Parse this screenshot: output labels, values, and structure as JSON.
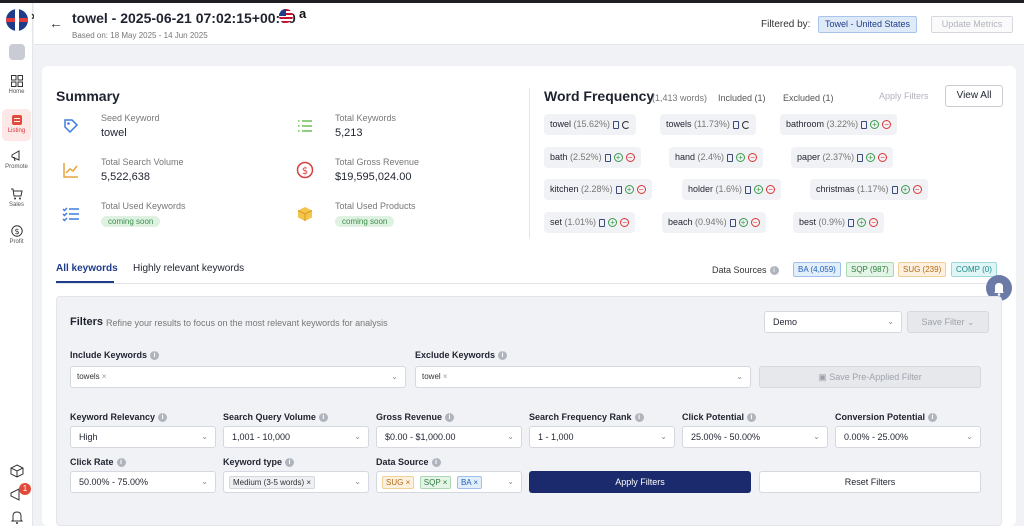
{
  "header": {
    "title": "towel - 2025-06-21 07:02:15+00:00",
    "subtitle": "Based on: 18 May 2025 - 14 Jun 2025",
    "marketplace": "a",
    "filtered_by_label": "Filtered by:",
    "filter_chip": "Towel - United States",
    "update_button": "Update Metrics"
  },
  "sidebar": {
    "expand": "»",
    "items": [
      {
        "label": "Home"
      },
      {
        "label": "Listing"
      },
      {
        "label": "Promote"
      },
      {
        "label": "Sales"
      },
      {
        "label": "Profit"
      }
    ],
    "notification_count": "1"
  },
  "summary": {
    "title": "Summary",
    "stats": [
      {
        "label": "Seed Keyword",
        "value": "towel",
        "icon": "tag-icon"
      },
      {
        "label": "Total Keywords",
        "value": "5,213",
        "icon": "list-icon"
      },
      {
        "label": "Total Search Volume",
        "value": "5,522,638",
        "icon": "chart-icon"
      },
      {
        "label": "Total Gross Revenue",
        "value": "$19,595,024.00",
        "icon": "dollar-icon"
      },
      {
        "label": "Total Used Keywords",
        "value": "coming soon",
        "icon": "checklist-icon"
      },
      {
        "label": "Total Used Products",
        "value": "coming soon",
        "icon": "box-icon"
      }
    ]
  },
  "word_frequency": {
    "title": "Word Frequency",
    "count": "(1,413 words)",
    "included": "Included (1)",
    "excluded": "Excluded (1)",
    "apply_filters": "Apply Filters",
    "view_all": "View All",
    "chips": [
      {
        "word": "towel",
        "pct": "(15.62%)"
      },
      {
        "word": "towels",
        "pct": "(11.73%)"
      },
      {
        "word": "bathroom",
        "pct": "(3.22%)"
      },
      {
        "word": "bath",
        "pct": "(2.52%)"
      },
      {
        "word": "hand",
        "pct": "(2.4%)"
      },
      {
        "word": "paper",
        "pct": "(2.37%)"
      },
      {
        "word": "kitchen",
        "pct": "(2.28%)"
      },
      {
        "word": "holder",
        "pct": "(1.6%)"
      },
      {
        "word": "christmas",
        "pct": "(1.17%)"
      },
      {
        "word": "set",
        "pct": "(1.01%)"
      },
      {
        "word": "beach",
        "pct": "(0.94%)"
      },
      {
        "word": "best",
        "pct": "(0.9%)"
      }
    ]
  },
  "tabs": [
    "All keywords",
    "Highly relevant keywords"
  ],
  "data_sources": {
    "label": "Data Sources",
    "badges": [
      {
        "text": "BA (4,059)",
        "color": "#1f5fb8",
        "bg": "#e3eefb",
        "border": "#9fc0ea"
      },
      {
        "text": "SQP (987)",
        "color": "#2e7d3e",
        "bg": "#e4f4e7",
        "border": "#a9d8b2"
      },
      {
        "text": "SUG (239)",
        "color": "#b36b12",
        "bg": "#fdf0de",
        "border": "#f0cf9a"
      },
      {
        "text": "COMP (0)",
        "color": "#1a8a8a",
        "bg": "#e0f5f5",
        "border": "#9ed9d9"
      }
    ]
  },
  "filters": {
    "title": "Filters",
    "description": "Refine your results to focus on the most relevant keywords for analysis",
    "preset": "Demo",
    "save_filter": "Save Filter",
    "include_label": "Include Keywords",
    "include_tag": "towels",
    "exclude_label": "Exclude Keywords",
    "exclude_tag": "towel",
    "save_preapplied": "Save Pre-Applied Filter",
    "fields": [
      {
        "label": "Keyword Relevancy",
        "value": "High"
      },
      {
        "label": "Search Query Volume",
        "value": "1,001 - 10,000"
      },
      {
        "label": "Gross Revenue",
        "value": "$0.00 - $1,000.00"
      },
      {
        "label": "Search Frequency Rank",
        "value": "1 - 1,000"
      },
      {
        "label": "Click Potential",
        "value": "25.00% - 50.00%"
      },
      {
        "label": "Conversion Potential",
        "value": "0.00% - 25.00%"
      },
      {
        "label": "Click Rate",
        "value": "50.00% - 75.00%"
      },
      {
        "label": "Keyword type",
        "value": "Medium (3-5 words)"
      },
      {
        "label": "Data Source",
        "tags": [
          "SUG",
          "SQP",
          "BA"
        ]
      }
    ],
    "apply_button": "Apply Filters",
    "reset_button": "Reset Filters"
  }
}
